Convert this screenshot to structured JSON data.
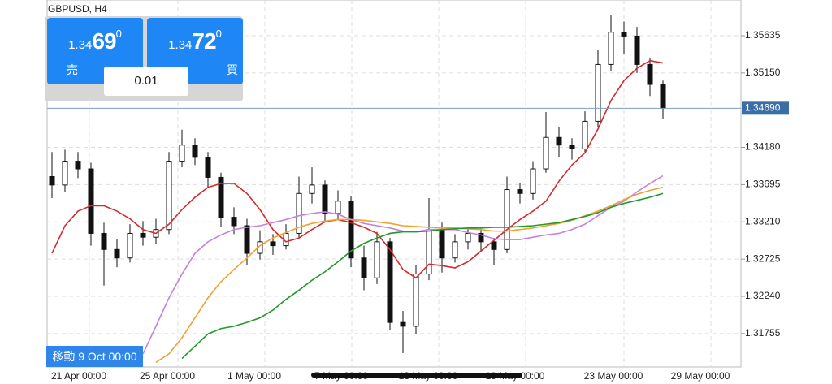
{
  "trade_panel": {
    "symbol": "GBPUSD, H4",
    "sell": {
      "prefix": "1.34",
      "big": "69",
      "sup": "0",
      "label": "売"
    },
    "buy": {
      "prefix": "1.34",
      "big": "72",
      "sup": "0",
      "label": "買"
    },
    "lot": "0.01"
  },
  "crosshair_label": "移動 9 Oct 00:00",
  "chart_data": {
    "type": "candlestick",
    "ylim": [
      1.3132,
      1.361
    ],
    "yticks": [
      1.35635,
      {
        "value": 1.3515,
        "label": "1.35150"
      },
      {
        "value": 1.3418,
        "label": "1.34180"
      },
      1.33695,
      {
        "value": 1.3321,
        "label": "1.33210"
      },
      1.32725,
      {
        "value": 1.3224,
        "label": "1.32240"
      },
      1.31755
    ],
    "current_price": {
      "value": 1.3469,
      "label": "1.34690"
    },
    "grid": true,
    "x_labels": [
      "21 Apr 00:00",
      "25 Apr 00:00",
      "1 May 00:00",
      "7 May 00:00",
      "13 May 00:00",
      "19 May 00:00",
      "23 May 00:00",
      "29 May 00:00"
    ],
    "candles": {
      "open": [
        1.338,
        1.3369,
        1.34,
        1.339,
        1.3306,
        1.3285,
        1.3274,
        1.3306,
        1.3301,
        1.3311,
        1.34,
        1.3421,
        1.3405,
        1.3379,
        1.3327,
        1.3316,
        1.328,
        1.3295,
        1.329,
        1.3306,
        1.3358,
        1.3369,
        1.3332,
        1.3348,
        1.3274,
        1.3248,
        1.3295,
        1.319,
        1.3185,
        1.3253,
        1.3311,
        1.3274,
        1.3295,
        1.3306,
        1.3295,
        1.3285,
        1.3363,
        1.3358,
        1.339,
        1.3431,
        1.3421,
        1.3416,
        1.3452,
        1.3526,
        1.3568,
        1.3563,
        1.3526,
        1.35
      ],
      "high": [
        1.3412,
        1.3415,
        1.3412,
        1.3398,
        1.332,
        1.3298,
        1.3318,
        1.3322,
        1.3325,
        1.3412,
        1.3441,
        1.343,
        1.3412,
        1.3385,
        1.334,
        1.3325,
        1.331,
        1.3305,
        1.3318,
        1.338,
        1.3392,
        1.3375,
        1.3362,
        1.3355,
        1.329,
        1.3308,
        1.33,
        1.3205,
        1.3265,
        1.3352,
        1.332,
        1.3305,
        1.3315,
        1.3312,
        1.33,
        1.338,
        1.3372,
        1.34,
        1.3464,
        1.3445,
        1.343,
        1.3465,
        1.3545,
        1.359,
        1.3582,
        1.3575,
        1.3535,
        1.3505
      ],
      "low": [
        1.3352,
        1.336,
        1.3378,
        1.329,
        1.3238,
        1.3262,
        1.3268,
        1.329,
        1.3292,
        1.3305,
        1.3392,
        1.3395,
        1.3365,
        1.3315,
        1.3305,
        1.3265,
        1.3272,
        1.3278,
        1.3285,
        1.3298,
        1.3345,
        1.332,
        1.3325,
        1.3262,
        1.3232,
        1.324,
        1.318,
        1.315,
        1.3175,
        1.3245,
        1.3255,
        1.3268,
        1.3285,
        1.3282,
        1.3265,
        1.328,
        1.3345,
        1.335,
        1.3385,
        1.3405,
        1.3402,
        1.341,
        1.3445,
        1.3518,
        1.354,
        1.3515,
        1.3485,
        1.3455
      ],
      "close": [
        1.3369,
        1.34,
        1.339,
        1.3306,
        1.3285,
        1.3274,
        1.3306,
        1.3301,
        1.3311,
        1.34,
        1.3421,
        1.3405,
        1.3379,
        1.3327,
        1.3316,
        1.328,
        1.3295,
        1.329,
        1.3306,
        1.3358,
        1.3369,
        1.3332,
        1.3348,
        1.3274,
        1.3248,
        1.3295,
        1.319,
        1.3185,
        1.3253,
        1.3311,
        1.3274,
        1.3295,
        1.3306,
        1.3295,
        1.3285,
        1.3363,
        1.3358,
        1.339,
        1.3431,
        1.3421,
        1.3416,
        1.3452,
        1.3526,
        1.3568,
        1.3563,
        1.3526,
        1.35,
        1.3469
      ]
    },
    "series": [
      {
        "color": "#d42a2a",
        "values": [
          1.328,
          1.3316,
          1.3335,
          1.3342,
          1.3342,
          1.3335,
          1.3325,
          1.3311,
          1.3306,
          1.3318,
          1.3337,
          1.3353,
          1.3366,
          1.3371,
          1.3371,
          1.3358,
          1.3337,
          1.3311,
          1.3295,
          1.33,
          1.3311,
          1.3321,
          1.3324,
          1.332,
          1.3314,
          1.3306,
          1.3285,
          1.3259,
          1.3248,
          1.3266,
          1.3264,
          1.3261,
          1.3269,
          1.3283,
          1.3297,
          1.3311,
          1.3324,
          1.3335,
          1.3348,
          1.3374,
          1.3395,
          1.3411,
          1.3442,
          1.3479,
          1.3505,
          1.3521,
          1.3531,
          1.3528
        ]
      },
      {
        "color": "#c77fe0",
        "values": [
          null,
          null,
          null,
          null,
          null,
          null,
          null,
          1.3149,
          1.3185,
          1.3222,
          1.3253,
          1.328,
          1.3295,
          1.3304,
          1.3311,
          1.3314,
          1.3316,
          1.332,
          1.3324,
          1.3329,
          1.3332,
          1.3334,
          1.3331,
          1.3324,
          1.3319,
          1.3316,
          1.3313,
          1.3309,
          1.3308,
          1.3311,
          1.3311,
          1.3311,
          1.3307,
          1.3304,
          1.3299,
          1.3298,
          1.3298,
          1.3301,
          1.3304,
          1.3306,
          1.3311,
          1.3318,
          1.3329,
          1.334,
          1.3348,
          1.336,
          1.3371,
          1.3381
        ]
      },
      {
        "color": "#f0a030",
        "values": [
          null,
          null,
          null,
          null,
          null,
          null,
          null,
          null,
          1.3138,
          1.3149,
          1.317,
          1.3196,
          1.3222,
          1.3243,
          1.3259,
          1.3274,
          1.329,
          1.33,
          1.3307,
          1.3314,
          1.3319,
          1.3322,
          1.3324,
          1.3324,
          1.3323,
          1.3321,
          1.3319,
          1.3316,
          1.3315,
          1.3314,
          1.3313,
          1.3313,
          1.3312,
          1.3311,
          1.3309,
          1.3309,
          1.3311,
          1.3313,
          1.3316,
          1.3319,
          1.3323,
          1.3329,
          1.3335,
          1.3342,
          1.335,
          1.3357,
          1.3362,
          1.3366
        ]
      },
      {
        "color": "#1e9a2a",
        "values": [
          null,
          null,
          null,
          null,
          null,
          null,
          null,
          null,
          null,
          null,
          1.3143,
          1.3159,
          1.3175,
          1.3182,
          1.3185,
          1.319,
          1.3196,
          1.3206,
          1.322,
          1.3232,
          1.3245,
          1.3256,
          1.3269,
          1.3283,
          1.3293,
          1.33,
          1.3306,
          1.3308,
          1.3308,
          1.3309,
          1.3311,
          1.3312,
          1.3313,
          1.3313,
          1.3314,
          1.3314,
          1.3315,
          1.3316,
          1.3318,
          1.332,
          1.3324,
          1.3328,
          1.3333,
          1.334,
          1.3345,
          1.3349,
          1.3353,
          1.3358
        ]
      }
    ]
  }
}
